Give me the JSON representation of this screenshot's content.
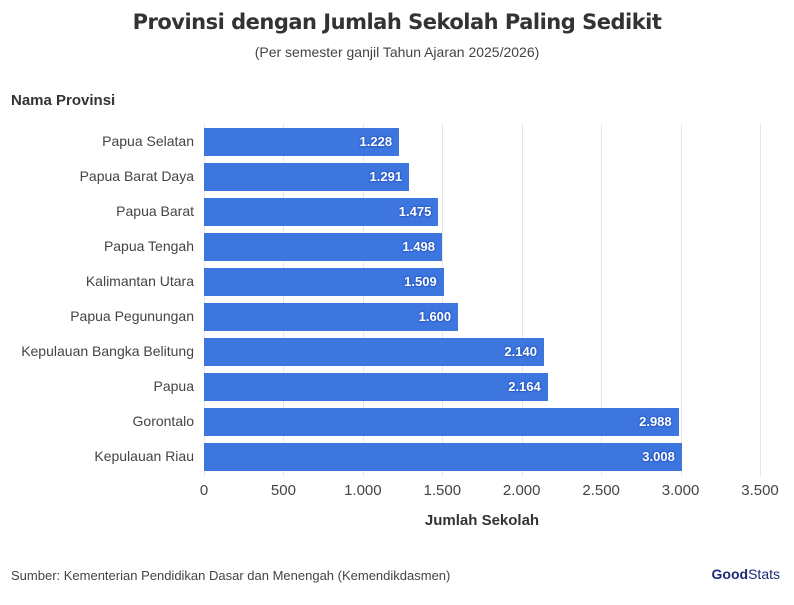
{
  "header": {
    "title": "Provinsi dengan Jumlah Sekolah Paling Sedikit",
    "subtitle": "(Per semester ganjil Tahun Ajaran 2025/2026)"
  },
  "axis": {
    "y_title": "Nama Provinsi",
    "x_title": "Jumlah Sekolah",
    "x_ticks": [
      "0",
      "500",
      "1.000",
      "1.500",
      "2.000",
      "2.500",
      "3.000",
      "3.500"
    ]
  },
  "footer": {
    "source": "Sumber: Kementerian Pendidikan Dasar dan Menengah (Kemendikdasmen)",
    "logo_bold": "Good",
    "logo_light": "Stats"
  },
  "colors": {
    "bar": "#3e76e0"
  },
  "chart_data": {
    "type": "bar",
    "orientation": "horizontal",
    "title": "Provinsi dengan Jumlah Sekolah Paling Sedikit",
    "subtitle": "(Per semester ganjil Tahun Ajaran 2025/2026)",
    "xlabel": "Jumlah Sekolah",
    "ylabel": "Nama Provinsi",
    "xlim": [
      0,
      3500
    ],
    "grid": true,
    "categories": [
      "Papua Selatan",
      "Papua Barat Daya",
      "Papua Barat",
      "Papua Tengah",
      "Kalimantan Utara",
      "Papua Pegunungan",
      "Kepulauan Bangka Belitung",
      "Papua",
      "Gorontalo",
      "Kepulauan Riau"
    ],
    "values": [
      1228,
      1291,
      1475,
      1498,
      1509,
      1600,
      2140,
      2164,
      2988,
      3008
    ],
    "labels": [
      "1.228",
      "1.291",
      "1.475",
      "1.498",
      "1.509",
      "1.600",
      "2.140",
      "2.164",
      "2.988",
      "3.008"
    ]
  }
}
